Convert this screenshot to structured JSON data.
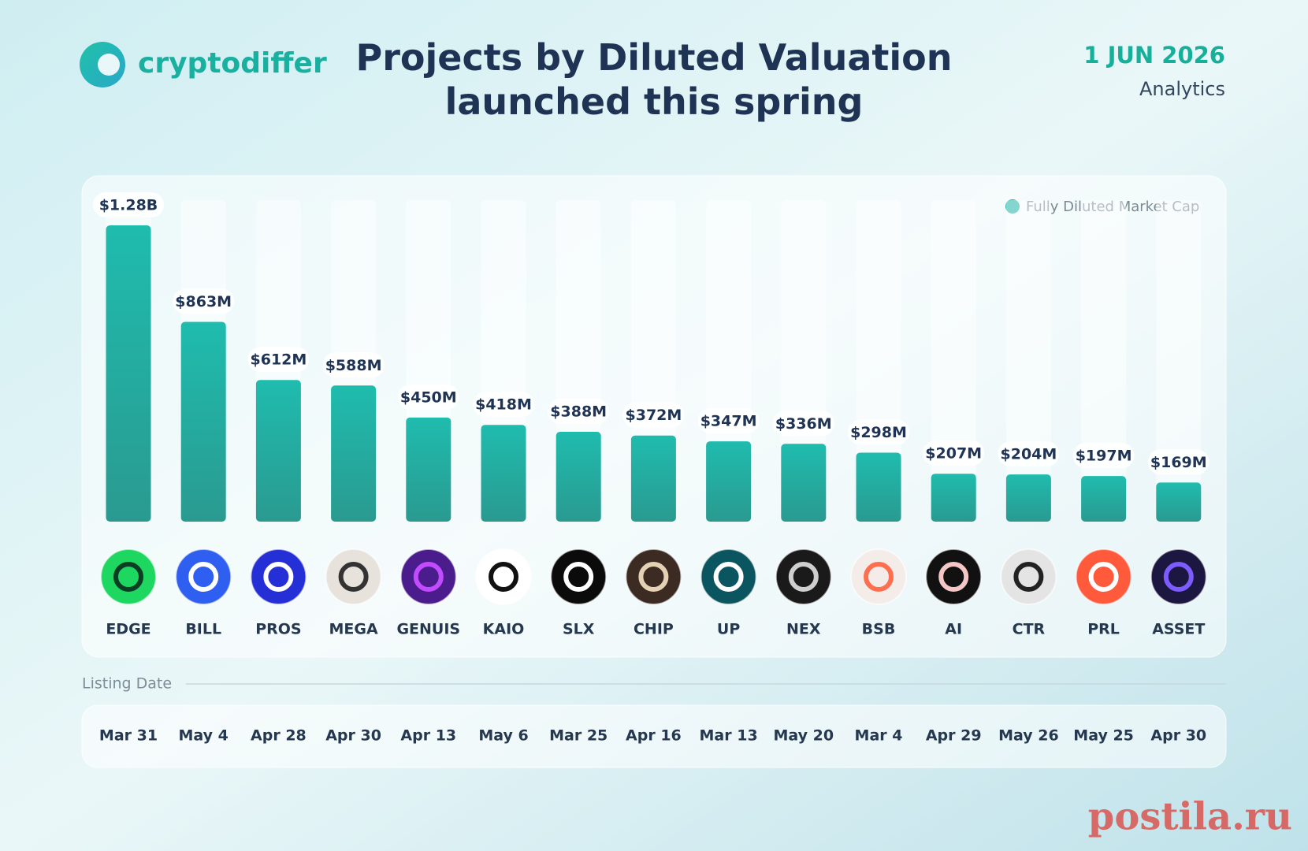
{
  "header": {
    "brand": "cryptodiffer",
    "date": "1 JUN 2026",
    "section": "Analytics"
  },
  "chart_data": {
    "type": "bar",
    "title": "Projects by Diluted Valuation launched this spring",
    "categories": [
      "EDGE",
      "BILL",
      "PROS",
      "MEGA",
      "GENUIS",
      "KAIO",
      "SLX",
      "CHIP",
      "UP",
      "NEX",
      "BSB",
      "AI",
      "CTR",
      "PRL",
      "ASSET"
    ],
    "series": [
      {
        "name": "Fully Diluted Market Cap",
        "color": "#1fb3a6",
        "values": [
          1280,
          863,
          612,
          588,
          450,
          418,
          388,
          372,
          347,
          336,
          298,
          207,
          204,
          197,
          169
        ],
        "value_labels": [
          "$1.28B",
          "$863M",
          "$612M",
          "$588M",
          "$450M",
          "$418M",
          "$388M",
          "$372M",
          "$347M",
          "$336M",
          "$298M",
          "$207M",
          "$204M",
          "$197M",
          "$169M"
        ]
      }
    ],
    "legend": "top-right",
    "dates_label": "Listing Date",
    "dates": [
      "Mar 31",
      "May 4",
      "Apr 28",
      "Apr 30",
      "Apr 13",
      "May 6",
      "Mar 25",
      "Apr 16",
      "Mar 13",
      "May 20",
      "Mar 4",
      "Apr 29",
      "May 26",
      "May 25",
      "Apr 30"
    ]
  },
  "watermark": "postila.ru"
}
